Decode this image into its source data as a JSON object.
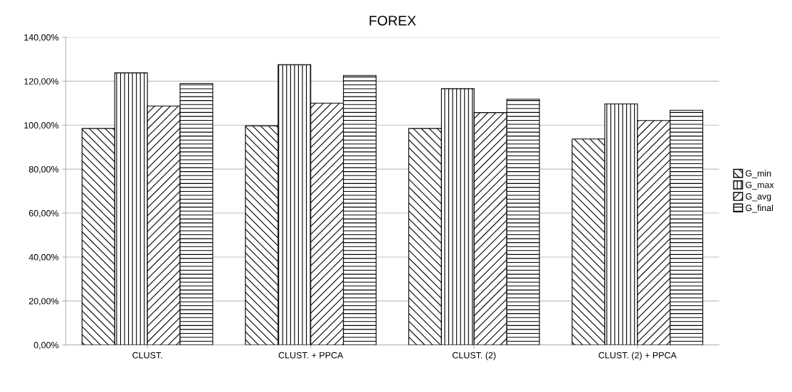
{
  "chart_data": {
    "type": "bar",
    "title": "FOREX",
    "categories": [
      "CLUST.",
      "CLUST. + PPCA",
      "CLUST. (2)",
      "CLUST. (2) + PPCA"
    ],
    "series": [
      {
        "name": "G_min",
        "color": "#000000",
        "values": [
          98.5,
          99.7,
          98.5,
          93.7
        ]
      },
      {
        "name": "G_max",
        "color": "#000000",
        "values": [
          123.8,
          127.5,
          116.6,
          109.7
        ]
      },
      {
        "name": "G_avg",
        "color": "#000000",
        "values": [
          108.7,
          110.0,
          105.7,
          102.1
        ]
      },
      {
        "name": "G_final",
        "color": "#000000",
        "values": [
          119.0,
          122.6,
          111.8,
          106.8
        ]
      }
    ],
    "ylim": [
      0,
      140
    ],
    "yticks": [
      {
        "value": 0,
        "label": "0,00%"
      },
      {
        "value": 20,
        "label": "20,00%"
      },
      {
        "value": 40,
        "label": "40,00%"
      },
      {
        "value": 60,
        "label": "60,00%"
      },
      {
        "value": 80,
        "label": "80,00%"
      },
      {
        "value": 100,
        "label": "100,00%"
      },
      {
        "value": 120,
        "label": "120,00%"
      },
      {
        "value": 140,
        "label": "140,00%"
      }
    ],
    "grid": "y",
    "legend": "right"
  }
}
